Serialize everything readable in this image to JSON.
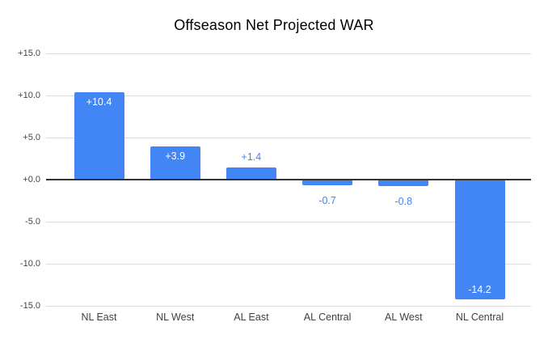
{
  "title": "Offseason Net Projected WAR",
  "chart_data": {
    "type": "bar",
    "title": "Offseason Net Projected WAR",
    "categories": [
      "NL East",
      "NL West",
      "AL East",
      "AL Central",
      "AL West",
      "NL Central"
    ],
    "values": [
      10.4,
      3.9,
      1.4,
      -0.7,
      -0.8,
      -14.2
    ],
    "value_labels": [
      "+10.4",
      "+3.9",
      "+1.4",
      "-0.7",
      "-0.8",
      "-14.2"
    ],
    "xlabel": "",
    "ylabel": "",
    "ylim": [
      -15,
      15
    ],
    "ytick_step": 5,
    "ytick_labels": [
      "+15.0",
      "+10.0",
      "+5.0",
      "+0.0",
      "-5.0",
      "-10.0",
      "-15.0"
    ],
    "grid": true,
    "legend": "none",
    "colors": {
      "bar": "#4285f4",
      "label_inside": "#ffffff",
      "label_outside": "#4285f4",
      "gridline": "#dcdcdc",
      "zero_line": "#333333",
      "axis_text": "#444444",
      "category_text": "#424242",
      "title_text": "#000000"
    }
  }
}
